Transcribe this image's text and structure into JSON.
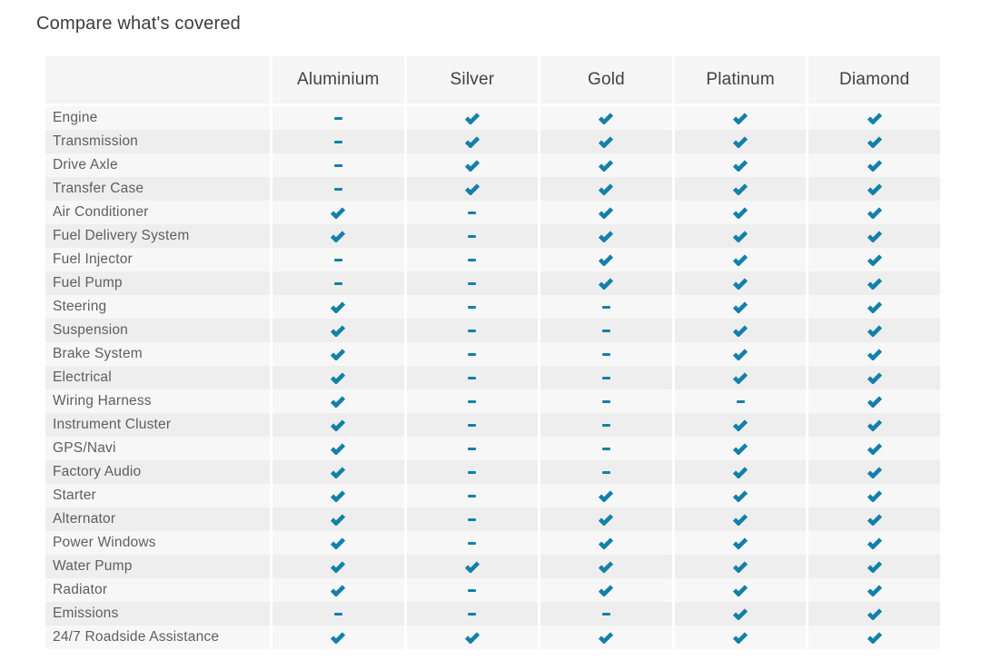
{
  "title": "Compare what's covered",
  "accent_color": "#1380aa",
  "table": {
    "columns": [
      "Aluminium",
      "Silver",
      "Gold",
      "Platinum",
      "Diamond"
    ],
    "rows": [
      {
        "label": "Engine",
        "values": [
          "dash",
          "check",
          "check",
          "check",
          "check"
        ]
      },
      {
        "label": "Transmission",
        "values": [
          "dash",
          "check",
          "check",
          "check",
          "check"
        ]
      },
      {
        "label": "Drive Axle",
        "values": [
          "dash",
          "check",
          "check",
          "check",
          "check"
        ]
      },
      {
        "label": "Transfer Case",
        "values": [
          "dash",
          "check",
          "check",
          "check",
          "check"
        ]
      },
      {
        "label": "Air Conditioner",
        "values": [
          "check",
          "dash",
          "check",
          "check",
          "check"
        ]
      },
      {
        "label": "Fuel Delivery System",
        "values": [
          "check",
          "dash",
          "check",
          "check",
          "check"
        ]
      },
      {
        "label": "Fuel Injector",
        "values": [
          "dash",
          "dash",
          "check",
          "check",
          "check"
        ]
      },
      {
        "label": "Fuel Pump",
        "values": [
          "dash",
          "dash",
          "check",
          "check",
          "check"
        ]
      },
      {
        "label": "Steering",
        "values": [
          "check",
          "dash",
          "dash",
          "check",
          "check"
        ]
      },
      {
        "label": "Suspension",
        "values": [
          "check",
          "dash",
          "dash",
          "check",
          "check"
        ]
      },
      {
        "label": "Brake System",
        "values": [
          "check",
          "dash",
          "dash",
          "check",
          "check"
        ]
      },
      {
        "label": "Electrical",
        "values": [
          "check",
          "dash",
          "dash",
          "check",
          "check"
        ]
      },
      {
        "label": "Wiring Harness",
        "values": [
          "check",
          "dash",
          "dash",
          "dash",
          "check"
        ]
      },
      {
        "label": "Instrument Cluster",
        "values": [
          "check",
          "dash",
          "dash",
          "check",
          "check"
        ]
      },
      {
        "label": "GPS/Navi",
        "values": [
          "check",
          "dash",
          "dash",
          "check",
          "check"
        ]
      },
      {
        "label": "Factory Audio",
        "values": [
          "check",
          "dash",
          "dash",
          "check",
          "check"
        ]
      },
      {
        "label": "Starter",
        "values": [
          "check",
          "dash",
          "check",
          "check",
          "check"
        ]
      },
      {
        "label": "Alternator",
        "values": [
          "check",
          "dash",
          "check",
          "check",
          "check"
        ]
      },
      {
        "label": "Power Windows",
        "values": [
          "check",
          "dash",
          "check",
          "check",
          "check"
        ]
      },
      {
        "label": "Water Pump",
        "values": [
          "check",
          "check",
          "check",
          "check",
          "check"
        ]
      },
      {
        "label": "Radiator",
        "values": [
          "check",
          "dash",
          "check",
          "check",
          "check"
        ]
      },
      {
        "label": "Emissions",
        "values": [
          "dash",
          "dash",
          "dash",
          "check",
          "check"
        ]
      },
      {
        "label": "24/7 Roadside Assistance",
        "values": [
          "check",
          "check",
          "check",
          "check",
          "check"
        ]
      }
    ]
  }
}
